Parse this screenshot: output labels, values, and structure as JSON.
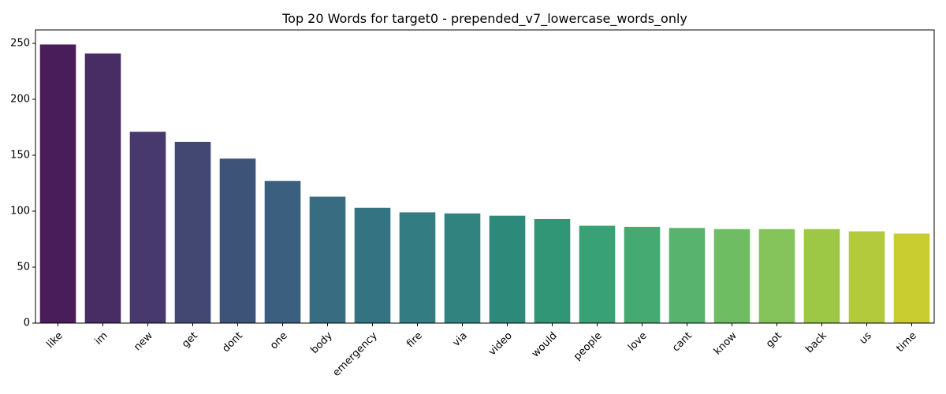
{
  "chart_data": {
    "type": "bar",
    "title": "Top 20 Words for target0 - prepended_v7_lowercase_words_only",
    "xlabel": "",
    "ylabel": "",
    "categories": [
      "like",
      "im",
      "new",
      "get",
      "dont",
      "one",
      "body",
      "emergency",
      "fire",
      "via",
      "video",
      "would",
      "people",
      "love",
      "cant",
      "know",
      "got",
      "back",
      "us",
      "time"
    ],
    "values": [
      249,
      241,
      171,
      162,
      147,
      127,
      113,
      103,
      99,
      98,
      96,
      93,
      87,
      86,
      85,
      84,
      84,
      84,
      82,
      80
    ],
    "ylim": [
      0,
      262
    ],
    "yticks": [
      0,
      50,
      100,
      150,
      200,
      250
    ],
    "grid": false,
    "palette": "viridis",
    "colors": [
      "#481d59",
      "#482c64",
      "#47396d",
      "#434872",
      "#3d5478",
      "#3a5f7f",
      "#376c81",
      "#347482",
      "#337c81",
      "#30837f",
      "#2d8a7b",
      "#319676",
      "#39a176",
      "#45aa72",
      "#57b36e",
      "#6ebd63",
      "#85c35b",
      "#9cc846",
      "#b2ca3c",
      "#c9cd30"
    ]
  }
}
